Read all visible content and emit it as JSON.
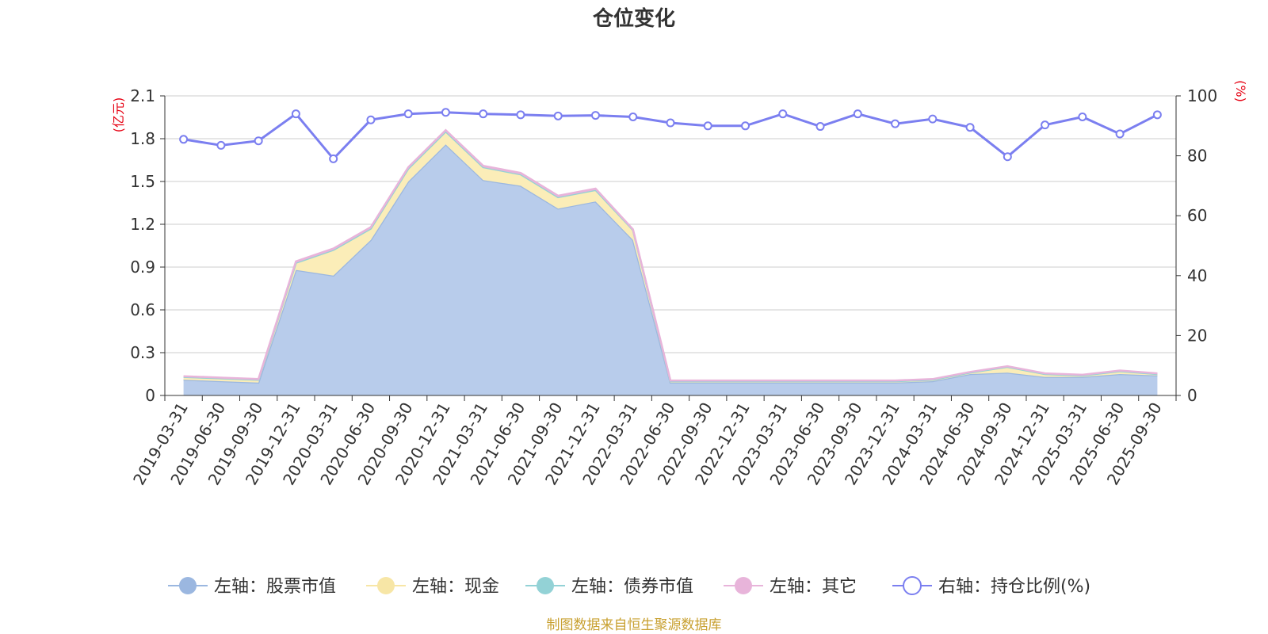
{
  "title": "仓位变化",
  "source": "制图数据来自恒生聚源数据库",
  "colors": {
    "stock": "#9bb7e0",
    "stock_fill": "#b8cceb",
    "cash": "#f7e6a6",
    "cash_fill": "#fbedb8",
    "bond": "#93d2d6",
    "other": "#e8b4da",
    "ratio": "#7b7ff0",
    "axis": "#333333",
    "grid": "#cccccc",
    "unit": "#e60012",
    "source": "#c8a030"
  },
  "chart_data": {
    "type": "area",
    "categories": [
      "2019-03-31",
      "2019-06-30",
      "2019-09-30",
      "2019-12-31",
      "2020-03-31",
      "2020-06-30",
      "2020-09-30",
      "2020-12-31",
      "2021-03-31",
      "2021-06-30",
      "2021-09-30",
      "2021-12-31",
      "2022-03-31",
      "2022-06-30",
      "2022-09-30",
      "2022-12-31",
      "2023-03-31",
      "2023-06-30",
      "2023-09-30",
      "2023-12-31",
      "2024-03-31",
      "2024-06-30",
      "2024-09-30",
      "2024-12-31",
      "2025-03-31",
      "2025-06-30",
      "2025-09-30"
    ],
    "left_axis": {
      "unit": "(亿元)",
      "ylim": [
        0,
        2.1
      ],
      "ticks": [
        "0",
        "0.3",
        "0.6",
        "0.9",
        "1.2",
        "1.5",
        "1.8",
        "2.1"
      ]
    },
    "right_axis": {
      "unit": "(%)",
      "ylim": [
        0,
        100
      ],
      "ticks": [
        "0",
        "20",
        "40",
        "60",
        "80",
        "100"
      ]
    },
    "grid": true,
    "legend_position": "bottom",
    "series": [
      {
        "key": "stock",
        "name": "左轴：股票市值",
        "axis": "left",
        "stacked": true,
        "values": [
          0.11,
          0.1,
          0.09,
          0.88,
          0.84,
          1.09,
          1.5,
          1.76,
          1.51,
          1.47,
          1.31,
          1.36,
          1.09,
          0.09,
          0.09,
          0.09,
          0.09,
          0.09,
          0.09,
          0.09,
          0.1,
          0.15,
          0.16,
          0.13,
          0.13,
          0.15,
          0.14
        ]
      },
      {
        "key": "cash",
        "name": "左轴：现金",
        "axis": "left",
        "stacked": true,
        "values": [
          0.02,
          0.02,
          0.02,
          0.05,
          0.18,
          0.08,
          0.09,
          0.09,
          0.09,
          0.08,
          0.08,
          0.08,
          0.07,
          0.01,
          0.01,
          0.01,
          0.01,
          0.01,
          0.01,
          0.01,
          0.01,
          0.01,
          0.04,
          0.02,
          0.01,
          0.02,
          0.01
        ]
      },
      {
        "key": "bond",
        "name": "左轴：债券市值",
        "axis": "left",
        "stacked": true,
        "values": [
          0,
          0,
          0,
          0,
          0,
          0,
          0,
          0,
          0,
          0,
          0,
          0,
          0,
          0,
          0,
          0,
          0,
          0,
          0,
          0,
          0,
          0,
          0,
          0,
          0,
          0,
          0
        ]
      },
      {
        "key": "other",
        "name": "左轴：其它",
        "axis": "left",
        "stacked": true,
        "values": [
          0.005,
          0.005,
          0.005,
          0.01,
          0.01,
          0.01,
          0.01,
          0.01,
          0.01,
          0.01,
          0.01,
          0.01,
          0.005,
          0.005,
          0.005,
          0.005,
          0.005,
          0.005,
          0.005,
          0.005,
          0.005,
          0.005,
          0.005,
          0.005,
          0.005,
          0.005,
          0.005
        ]
      },
      {
        "key": "ratio",
        "name": "右轴：持仓比例(%)",
        "axis": "right",
        "stacked": false,
        "values": [
          85.5,
          83.5,
          85,
          94,
          79,
          92,
          94,
          94.5,
          94,
          93.7,
          93.3,
          93.5,
          93,
          91,
          90,
          90,
          94,
          89.8,
          94,
          90.7,
          92.3,
          89.5,
          79.7,
          90.3,
          93,
          87.3,
          93.7
        ]
      }
    ]
  }
}
